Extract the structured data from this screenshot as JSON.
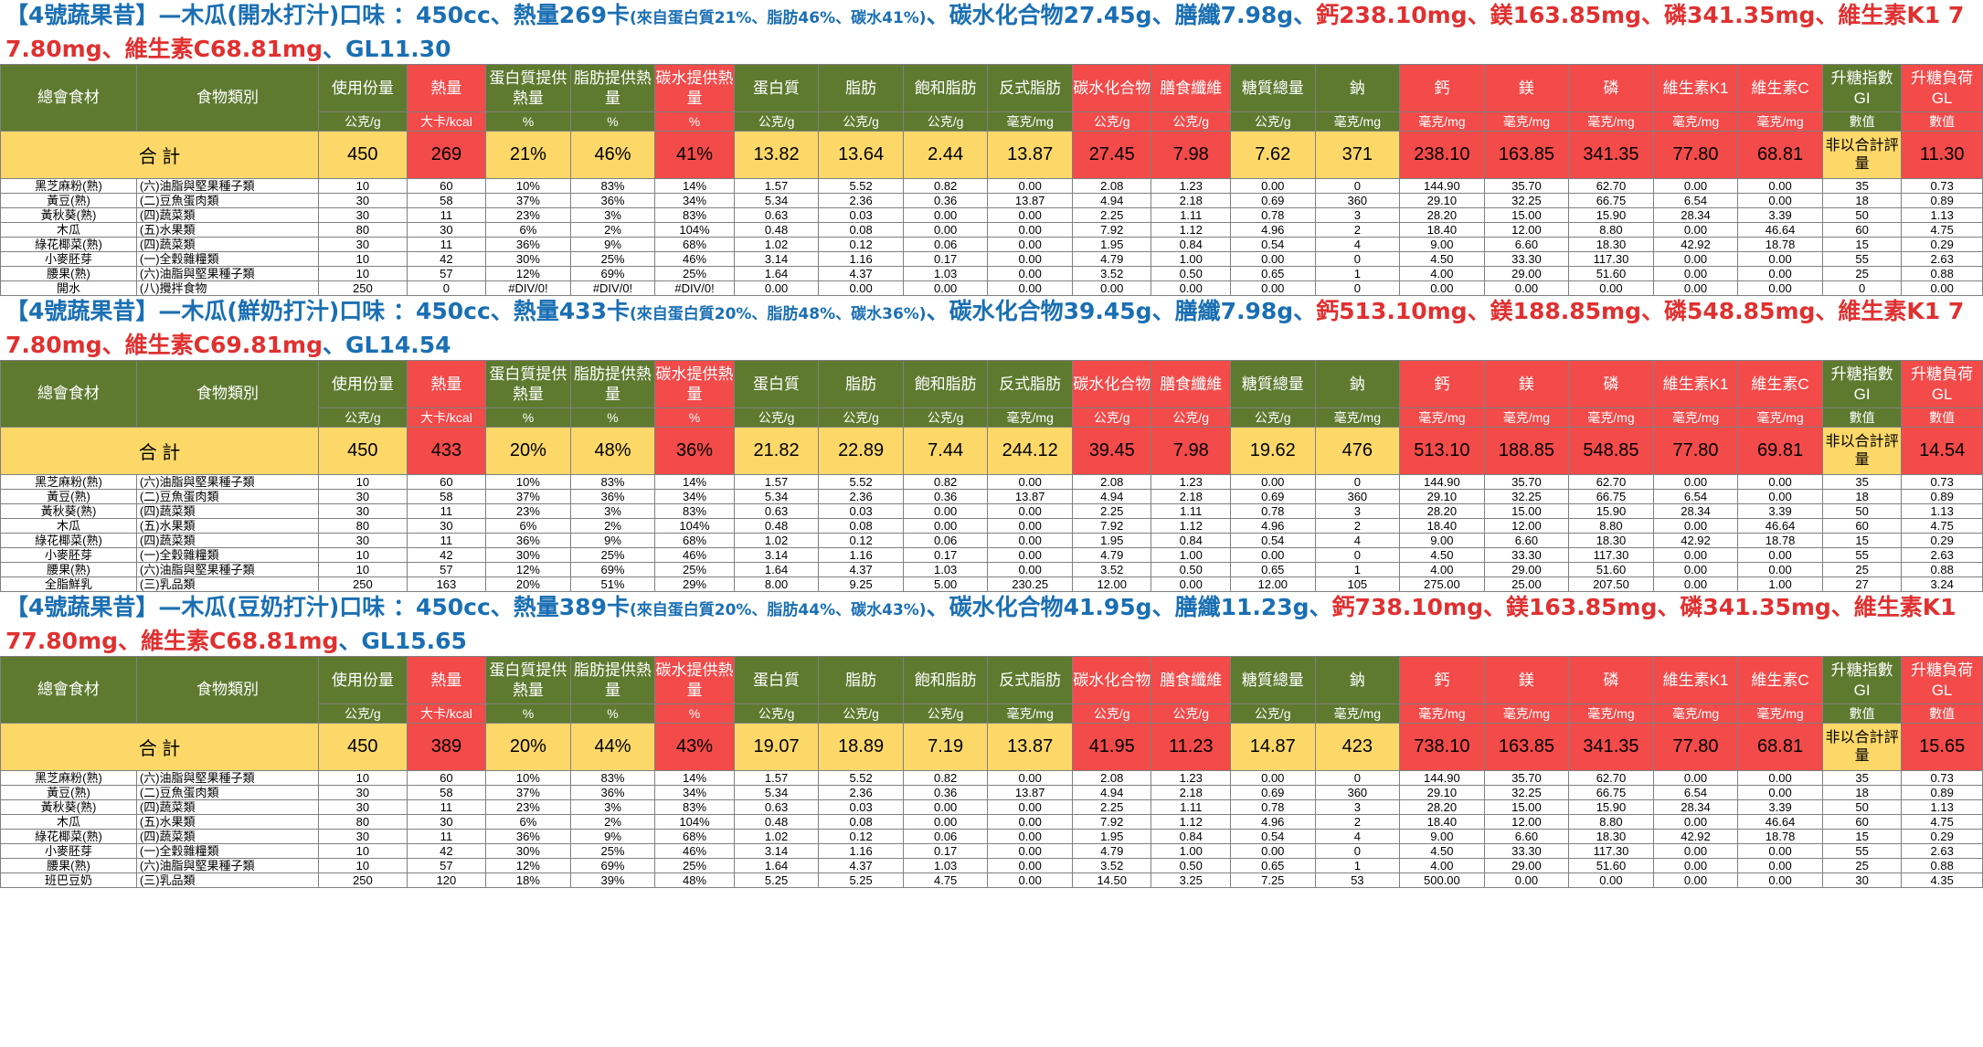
{
  "headers": [
    "總會食材",
    "食物類別",
    "使用份量",
    "熱量",
    "蛋白質提供熱量",
    "脂肪提供熱量",
    "碳水提供熱量",
    "蛋白質",
    "脂肪",
    "飽和脂肪",
    "反式脂肪",
    "碳水化合物",
    "膳食纖維",
    "糖質總量",
    "鈉",
    "鈣",
    "鎂",
    "磷",
    "維生素K1",
    "維生素C",
    "升糖指數GI",
    "升糖負荷GL"
  ],
  "units": [
    "",
    "",
    "公克/g",
    "大卡/kcal",
    "%",
    "%",
    "%",
    "公克/g",
    "公克/g",
    "公克/g",
    "毫克/mg",
    "公克/g",
    "公克/g",
    "公克/g",
    "毫克/mg",
    "毫克/mg",
    "毫克/mg",
    "毫克/mg",
    "毫克/mg",
    "毫克/mg",
    "數值",
    "數值"
  ],
  "column_colors": [
    "green",
    "green",
    "green",
    "red",
    "green",
    "green",
    "red",
    "green",
    "green",
    "green",
    "green",
    "red",
    "red",
    "green",
    "green",
    "red",
    "red",
    "red",
    "red",
    "red",
    "green",
    "red"
  ],
  "colors": {
    "header_green": "#5d7a2f",
    "header_red": "#f34a4a",
    "total_yellow": "#fcd869",
    "title_blue": "#1a6fb3",
    "title_red": "#e03030"
  },
  "total_label": "合 計",
  "gi_note": "非以合計評量",
  "blocks": [
    {
      "title_parts": [
        {
          "t": "【4號蔬果昔】—木瓜(開水打汁)口味 ：450cc、熱量269卡",
          "c": "blue"
        },
        {
          "t": "(來自蛋白質21%、脂肪46%、碳水41%)",
          "c": "small"
        },
        {
          "t": "、碳水化合物27.45g、膳纖7.98g、",
          "c": "blue"
        },
        {
          "t": "鈣238.10mg、鎂163.85mg、磷341.35mg、維生素K1 77.80mg、維生素C68.81mg",
          "c": "red"
        },
        {
          "t": "、GL11.30",
          "c": "blue"
        }
      ],
      "totals": [
        "450",
        "269",
        "21%",
        "46%",
        "41%",
        "13.82",
        "13.64",
        "2.44",
        "13.87",
        "27.45",
        "7.98",
        "7.62",
        "371",
        "238.10",
        "163.85",
        "341.35",
        "77.80",
        "68.81",
        "11.30"
      ],
      "rows": [
        [
          "黑芝麻粉(熟)",
          "(六)油脂與堅果種子類",
          "10",
          "60",
          "10%",
          "83%",
          "14%",
          "1.57",
          "5.52",
          "0.82",
          "0.00",
          "2.08",
          "1.23",
          "0.00",
          "0",
          "144.90",
          "35.70",
          "62.70",
          "0.00",
          "0.00",
          "35",
          "0.73"
        ],
        [
          "黃豆(熟)",
          "(二)豆魚蛋肉類",
          "30",
          "58",
          "37%",
          "36%",
          "34%",
          "5.34",
          "2.36",
          "0.36",
          "13.87",
          "4.94",
          "2.18",
          "0.69",
          "360",
          "29.10",
          "32.25",
          "66.75",
          "6.54",
          "0.00",
          "18",
          "0.89"
        ],
        [
          "黃秋葵(熟)",
          "(四)蔬菜類",
          "30",
          "11",
          "23%",
          "3%",
          "83%",
          "0.63",
          "0.03",
          "0.00",
          "0.00",
          "2.25",
          "1.11",
          "0.78",
          "3",
          "28.20",
          "15.00",
          "15.90",
          "28.34",
          "3.39",
          "50",
          "1.13"
        ],
        [
          "木瓜",
          "(五)水果類",
          "80",
          "30",
          "6%",
          "2%",
          "104%",
          "0.48",
          "0.08",
          "0.00",
          "0.00",
          "7.92",
          "1.12",
          "4.96",
          "2",
          "18.40",
          "12.00",
          "8.80",
          "0.00",
          "46.64",
          "60",
          "4.75"
        ],
        [
          "綠花椰菜(熟)",
          "(四)蔬菜類",
          "30",
          "11",
          "36%",
          "9%",
          "68%",
          "1.02",
          "0.12",
          "0.06",
          "0.00",
          "1.95",
          "0.84",
          "0.54",
          "4",
          "9.00",
          "6.60",
          "18.30",
          "42.92",
          "18.78",
          "15",
          "0.29"
        ],
        [
          "小麥胚芽",
          "(一)全穀雜糧類",
          "10",
          "42",
          "30%",
          "25%",
          "46%",
          "3.14",
          "1.16",
          "0.17",
          "0.00",
          "4.79",
          "1.00",
          "0.00",
          "0",
          "4.50",
          "33.30",
          "117.30",
          "0.00",
          "0.00",
          "55",
          "2.63"
        ],
        [
          "腰果(熟)",
          "(六)油脂與堅果種子類",
          "10",
          "57",
          "12%",
          "69%",
          "25%",
          "1.64",
          "4.37",
          "1.03",
          "0.00",
          "3.52",
          "0.50",
          "0.65",
          "1",
          "4.00",
          "29.00",
          "51.60",
          "0.00",
          "0.00",
          "25",
          "0.88"
        ],
        [
          "開水",
          "(八)攪拌食物",
          "250",
          "0",
          "#DIV/0!",
          "#DIV/0!",
          "#DIV/0!",
          "0.00",
          "0.00",
          "0.00",
          "0.00",
          "0.00",
          "0.00",
          "0.00",
          "0",
          "0.00",
          "0.00",
          "0.00",
          "0.00",
          "0.00",
          "0",
          "0.00"
        ]
      ]
    },
    {
      "title_parts": [
        {
          "t": "【4號蔬果昔】—木瓜(鮮奶打汁)口味 ：450cc、熱量433卡",
          "c": "blue"
        },
        {
          "t": "(來自蛋白質20%、脂肪48%、碳水36%)",
          "c": "small"
        },
        {
          "t": "、碳水化合物39.45g、膳纖7.98g、",
          "c": "blue"
        },
        {
          "t": "鈣513.10mg、鎂188.85mg、磷548.85mg、維生素K1 77.80mg、維生素C69.81mg",
          "c": "red"
        },
        {
          "t": "、GL14.54",
          "c": "blue"
        }
      ],
      "totals": [
        "450",
        "433",
        "20%",
        "48%",
        "36%",
        "21.82",
        "22.89",
        "7.44",
        "244.12",
        "39.45",
        "7.98",
        "19.62",
        "476",
        "513.10",
        "188.85",
        "548.85",
        "77.80",
        "69.81",
        "14.54"
      ],
      "rows": [
        [
          "黑芝麻粉(熟)",
          "(六)油脂與堅果種子類",
          "10",
          "60",
          "10%",
          "83%",
          "14%",
          "1.57",
          "5.52",
          "0.82",
          "0.00",
          "2.08",
          "1.23",
          "0.00",
          "0",
          "144.90",
          "35.70",
          "62.70",
          "0.00",
          "0.00",
          "35",
          "0.73"
        ],
        [
          "黃豆(熟)",
          "(二)豆魚蛋肉類",
          "30",
          "58",
          "37%",
          "36%",
          "34%",
          "5.34",
          "2.36",
          "0.36",
          "13.87",
          "4.94",
          "2.18",
          "0.69",
          "360",
          "29.10",
          "32.25",
          "66.75",
          "6.54",
          "0.00",
          "18",
          "0.89"
        ],
        [
          "黃秋葵(熟)",
          "(四)蔬菜類",
          "30",
          "11",
          "23%",
          "3%",
          "83%",
          "0.63",
          "0.03",
          "0.00",
          "0.00",
          "2.25",
          "1.11",
          "0.78",
          "3",
          "28.20",
          "15.00",
          "15.90",
          "28.34",
          "3.39",
          "50",
          "1.13"
        ],
        [
          "木瓜",
          "(五)水果類",
          "80",
          "30",
          "6%",
          "2%",
          "104%",
          "0.48",
          "0.08",
          "0.00",
          "0.00",
          "7.92",
          "1.12",
          "4.96",
          "2",
          "18.40",
          "12.00",
          "8.80",
          "0.00",
          "46.64",
          "60",
          "4.75"
        ],
        [
          "綠花椰菜(熟)",
          "(四)蔬菜類",
          "30",
          "11",
          "36%",
          "9%",
          "68%",
          "1.02",
          "0.12",
          "0.06",
          "0.00",
          "1.95",
          "0.84",
          "0.54",
          "4",
          "9.00",
          "6.60",
          "18.30",
          "42.92",
          "18.78",
          "15",
          "0.29"
        ],
        [
          "小麥胚芽",
          "(一)全穀雜糧類",
          "10",
          "42",
          "30%",
          "25%",
          "46%",
          "3.14",
          "1.16",
          "0.17",
          "0.00",
          "4.79",
          "1.00",
          "0.00",
          "0",
          "4.50",
          "33.30",
          "117.30",
          "0.00",
          "0.00",
          "55",
          "2.63"
        ],
        [
          "腰果(熟)",
          "(六)油脂與堅果種子類",
          "10",
          "57",
          "12%",
          "69%",
          "25%",
          "1.64",
          "4.37",
          "1.03",
          "0.00",
          "3.52",
          "0.50",
          "0.65",
          "1",
          "4.00",
          "29.00",
          "51.60",
          "0.00",
          "0.00",
          "25",
          "0.88"
        ],
        [
          "全脂鮮乳",
          "(三)乳品類",
          "250",
          "163",
          "20%",
          "51%",
          "29%",
          "8.00",
          "9.25",
          "5.00",
          "230.25",
          "12.00",
          "0.00",
          "12.00",
          "105",
          "275.00",
          "25.00",
          "207.50",
          "0.00",
          "1.00",
          "27",
          "3.24"
        ]
      ]
    },
    {
      "title_parts": [
        {
          "t": "【4號蔬果昔】—木瓜(豆奶打汁)口味 ：450cc、熱量389卡",
          "c": "blue"
        },
        {
          "t": "(來自蛋白質20%、脂肪44%、碳水43%)",
          "c": "small"
        },
        {
          "t": "、碳水化合物41.95g、膳纖11.23g、",
          "c": "blue"
        },
        {
          "t": "鈣738.10mg、鎂163.85mg、磷341.35mg、維生素K1 77.80mg、維生素C68.81mg",
          "c": "red"
        },
        {
          "t": "、GL15.65",
          "c": "blue"
        }
      ],
      "totals": [
        "450",
        "389",
        "20%",
        "44%",
        "43%",
        "19.07",
        "18.89",
        "7.19",
        "13.87",
        "41.95",
        "11.23",
        "14.87",
        "423",
        "738.10",
        "163.85",
        "341.35",
        "77.80",
        "68.81",
        "15.65"
      ],
      "rows": [
        [
          "黑芝麻粉(熟)",
          "(六)油脂與堅果種子類",
          "10",
          "60",
          "10%",
          "83%",
          "14%",
          "1.57",
          "5.52",
          "0.82",
          "0.00",
          "2.08",
          "1.23",
          "0.00",
          "0",
          "144.90",
          "35.70",
          "62.70",
          "0.00",
          "0.00",
          "35",
          "0.73"
        ],
        [
          "黃豆(熟)",
          "(二)豆魚蛋肉類",
          "30",
          "58",
          "37%",
          "36%",
          "34%",
          "5.34",
          "2.36",
          "0.36",
          "13.87",
          "4.94",
          "2.18",
          "0.69",
          "360",
          "29.10",
          "32.25",
          "66.75",
          "6.54",
          "0.00",
          "18",
          "0.89"
        ],
        [
          "黃秋葵(熟)",
          "(四)蔬菜類",
          "30",
          "11",
          "23%",
          "3%",
          "83%",
          "0.63",
          "0.03",
          "0.00",
          "0.00",
          "2.25",
          "1.11",
          "0.78",
          "3",
          "28.20",
          "15.00",
          "15.90",
          "28.34",
          "3.39",
          "50",
          "1.13"
        ],
        [
          "木瓜",
          "(五)水果類",
          "80",
          "30",
          "6%",
          "2%",
          "104%",
          "0.48",
          "0.08",
          "0.00",
          "0.00",
          "7.92",
          "1.12",
          "4.96",
          "2",
          "18.40",
          "12.00",
          "8.80",
          "0.00",
          "46.64",
          "60",
          "4.75"
        ],
        [
          "綠花椰菜(熟)",
          "(四)蔬菜類",
          "30",
          "11",
          "36%",
          "9%",
          "68%",
          "1.02",
          "0.12",
          "0.06",
          "0.00",
          "1.95",
          "0.84",
          "0.54",
          "4",
          "9.00",
          "6.60",
          "18.30",
          "42.92",
          "18.78",
          "15",
          "0.29"
        ],
        [
          "小麥胚芽",
          "(一)全穀雜糧類",
          "10",
          "42",
          "30%",
          "25%",
          "46%",
          "3.14",
          "1.16",
          "0.17",
          "0.00",
          "4.79",
          "1.00",
          "0.00",
          "0",
          "4.50",
          "33.30",
          "117.30",
          "0.00",
          "0.00",
          "55",
          "2.63"
        ],
        [
          "腰果(熟)",
          "(六)油脂與堅果種子類",
          "10",
          "57",
          "12%",
          "69%",
          "25%",
          "1.64",
          "4.37",
          "1.03",
          "0.00",
          "3.52",
          "0.50",
          "0.65",
          "1",
          "4.00",
          "29.00",
          "51.60",
          "0.00",
          "0.00",
          "25",
          "0.88"
        ],
        [
          "班巴豆奶",
          "(三)乳品類",
          "250",
          "120",
          "18%",
          "39%",
          "48%",
          "5.25",
          "5.25",
          "4.75",
          "0.00",
          "14.50",
          "3.25",
          "7.25",
          "53",
          "500.00",
          "0.00",
          "0.00",
          "0.00",
          "0.00",
          "30",
          "4.35"
        ]
      ]
    }
  ]
}
